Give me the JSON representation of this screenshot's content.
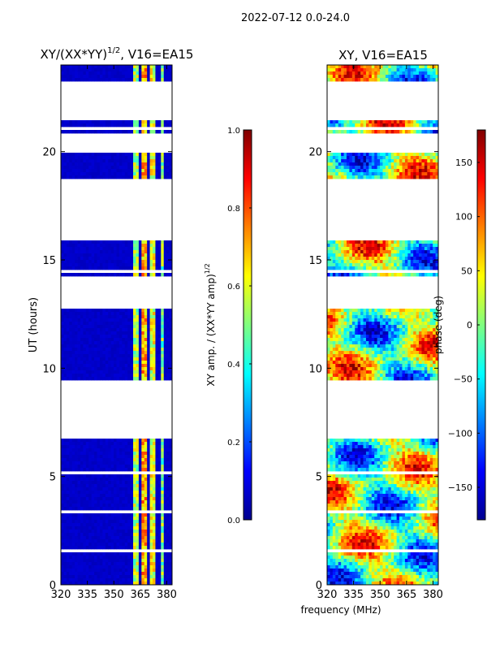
{
  "figure": {
    "suptitle": "2022-07-12 0.0-24.0",
    "xlabel": "frequency (MHz)"
  },
  "colors": {
    "jet": [
      "#00008f",
      "#0000ff",
      "#0080ff",
      "#00ffff",
      "#80ff80",
      "#ffff00",
      "#ff8000",
      "#ff0000",
      "#800000"
    ]
  },
  "chart_data": [
    {
      "type": "heatmap",
      "title_main": "XY/(XX*YY)",
      "title_sup": "1/2",
      "title_tail": ", V16=EA15",
      "ylabel": "UT (hours)",
      "xlim": [
        320,
        383
      ],
      "ylim": [
        0,
        24
      ],
      "xticks": [
        320,
        335,
        350,
        365,
        380
      ],
      "yticks": [
        0,
        5,
        10,
        15,
        20
      ],
      "colorbar": {
        "label_main": "XY amp. / (XX*YY amp)",
        "label_sup": "1/2",
        "range": [
          0.0,
          1.0
        ],
        "ticks": [
          "0.0",
          "0.2",
          "0.4",
          "0.6",
          "0.8",
          "1.0"
        ]
      },
      "data_gaps_hours": [
        [
          1.45,
          1.65
        ],
        [
          3.3,
          3.5
        ],
        [
          5.1,
          5.3
        ],
        [
          6.8,
          9.4
        ],
        [
          12.7,
          14.3
        ],
        [
          14.4,
          14.55
        ],
        [
          15.9,
          18.7
        ],
        [
          19.9,
          20.8
        ],
        [
          21.0,
          21.2
        ],
        [
          21.4,
          23.3
        ]
      ],
      "data_blocks_hours": [
        [
          0.0,
          1.45
        ],
        [
          1.65,
          3.3
        ],
        [
          3.5,
          5.1
        ],
        [
          5.3,
          6.8
        ],
        [
          9.4,
          12.7
        ],
        [
          14.3,
          14.4
        ],
        [
          14.55,
          15.9
        ],
        [
          18.7,
          19.9
        ],
        [
          20.8,
          21.0
        ],
        [
          21.2,
          21.4
        ],
        [
          23.3,
          24.0
        ]
      ],
      "typical_value_below_360MHz": 0.05,
      "bright_channels_MHz": [
        [
          361,
          364,
          0.55
        ],
        [
          366,
          369,
          0.7
        ],
        [
          371,
          374,
          0.6
        ],
        [
          376,
          379,
          0.5
        ]
      ]
    },
    {
      "type": "heatmap",
      "title": "XY, V16=EA15",
      "ylabel": "",
      "xlim": [
        320,
        383
      ],
      "ylim": [
        0,
        24
      ],
      "xticks": [
        320,
        335,
        350,
        365,
        380
      ],
      "yticks": [
        0,
        5,
        10,
        15,
        20
      ],
      "colorbar": {
        "label": "phase (deg)",
        "range": [
          -180,
          180
        ],
        "ticks": [
          "150",
          "100",
          "50",
          "0",
          "−50",
          "−100",
          "−150"
        ],
        "tick_values": [
          150,
          100,
          50,
          0,
          -50,
          -100,
          -150
        ]
      },
      "data_gaps_hours": [
        [
          1.45,
          1.65
        ],
        [
          3.3,
          3.5
        ],
        [
          5.1,
          5.3
        ],
        [
          6.8,
          9.4
        ],
        [
          12.7,
          14.3
        ],
        [
          14.4,
          14.55
        ],
        [
          15.9,
          18.7
        ],
        [
          19.9,
          20.8
        ],
        [
          21.0,
          21.2
        ],
        [
          21.4,
          23.3
        ]
      ],
      "phase_range_deg": [
        -180,
        180
      ]
    }
  ]
}
